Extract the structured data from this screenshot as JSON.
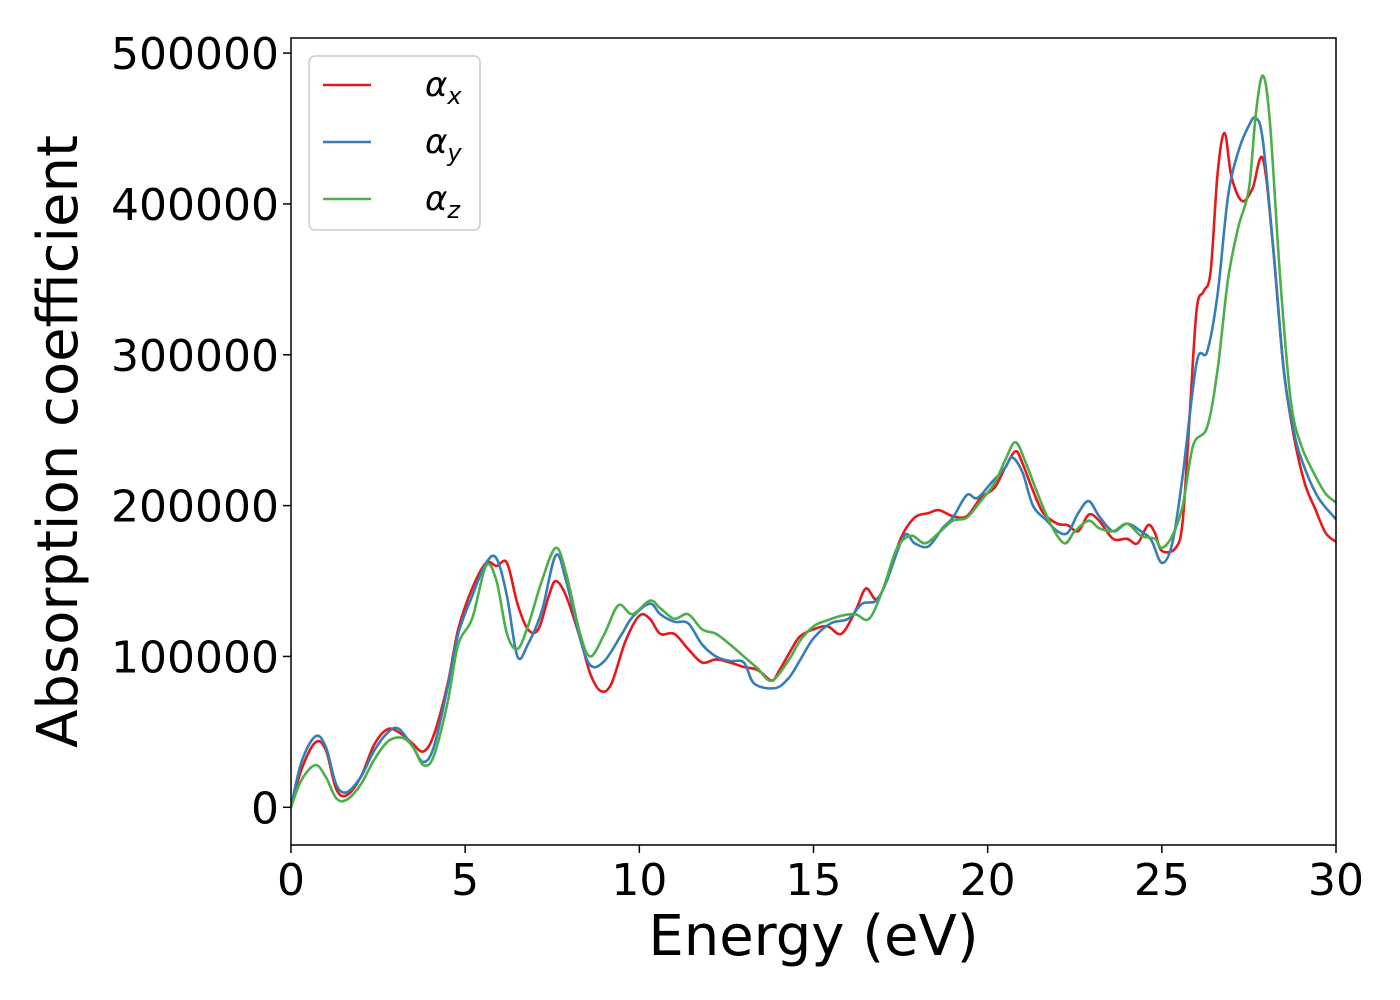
{
  "chart_data": {
    "type": "line",
    "title": "",
    "xlabel": "Energy (eV)",
    "ylabel": "Absorption coefficient",
    "xlim": [
      0,
      30
    ],
    "ylim": [
      -25000,
      510000
    ],
    "xticks": [
      0,
      5,
      10,
      15,
      20,
      25,
      30
    ],
    "yticks": [
      0,
      100000,
      200000,
      300000,
      400000,
      500000
    ],
    "grid": false,
    "legend_position": "top-left",
    "series": [
      {
        "name": "α",
        "subscript": "x",
        "color": "#e41a1c",
        "points": [
          [
            0,
            0
          ],
          [
            0.3,
            25000
          ],
          [
            0.7,
            43000
          ],
          [
            1.0,
            38000
          ],
          [
            1.3,
            12000
          ],
          [
            1.6,
            8000
          ],
          [
            2.0,
            20000
          ],
          [
            2.4,
            42000
          ],
          [
            2.8,
            52000
          ],
          [
            3.2,
            48000
          ],
          [
            3.5,
            42000
          ],
          [
            3.8,
            37000
          ],
          [
            4.1,
            48000
          ],
          [
            4.5,
            82000
          ],
          [
            4.8,
            118000
          ],
          [
            5.2,
            145000
          ],
          [
            5.6,
            162000
          ],
          [
            5.9,
            160000
          ],
          [
            6.2,
            162000
          ],
          [
            6.5,
            135000
          ],
          [
            6.8,
            118000
          ],
          [
            7.1,
            118000
          ],
          [
            7.4,
            140000
          ],
          [
            7.6,
            150000
          ],
          [
            7.9,
            140000
          ],
          [
            8.3,
            112000
          ],
          [
            8.6,
            88000
          ],
          [
            8.9,
            77000
          ],
          [
            9.2,
            82000
          ],
          [
            9.6,
            110000
          ],
          [
            10.0,
            127000
          ],
          [
            10.3,
            125000
          ],
          [
            10.6,
            115000
          ],
          [
            11.0,
            115000
          ],
          [
            11.4,
            105000
          ],
          [
            11.8,
            96000
          ],
          [
            12.2,
            98000
          ],
          [
            12.6,
            96000
          ],
          [
            13.0,
            93000
          ],
          [
            13.4,
            91000
          ],
          [
            13.8,
            84000
          ],
          [
            14.0,
            90000
          ],
          [
            14.3,
            102000
          ],
          [
            14.6,
            113000
          ],
          [
            15.0,
            118000
          ],
          [
            15.4,
            120000
          ],
          [
            15.8,
            115000
          ],
          [
            16.2,
            130000
          ],
          [
            16.5,
            145000
          ],
          [
            16.8,
            138000
          ],
          [
            17.1,
            150000
          ],
          [
            17.5,
            178000
          ],
          [
            17.9,
            192000
          ],
          [
            18.3,
            195000
          ],
          [
            18.6,
            197000
          ],
          [
            19.0,
            193000
          ],
          [
            19.4,
            193000
          ],
          [
            19.8,
            205000
          ],
          [
            20.2,
            212000
          ],
          [
            20.5,
            225000
          ],
          [
            20.8,
            236000
          ],
          [
            21.0,
            228000
          ],
          [
            21.3,
            210000
          ],
          [
            21.6,
            195000
          ],
          [
            22.0,
            188000
          ],
          [
            22.3,
            187000
          ],
          [
            22.6,
            183000
          ],
          [
            22.9,
            194000
          ],
          [
            23.2,
            190000
          ],
          [
            23.6,
            178000
          ],
          [
            24.0,
            178000
          ],
          [
            24.3,
            175000
          ],
          [
            24.6,
            187000
          ],
          [
            24.8,
            182000
          ],
          [
            25.0,
            170000
          ],
          [
            25.4,
            172000
          ],
          [
            25.6,
            190000
          ],
          [
            25.8,
            260000
          ],
          [
            26.0,
            330000
          ],
          [
            26.2,
            342000
          ],
          [
            26.4,
            355000
          ],
          [
            26.6,
            420000
          ],
          [
            26.8,
            447000
          ],
          [
            27.0,
            418000
          ],
          [
            27.3,
            402000
          ],
          [
            27.6,
            410000
          ],
          [
            27.9,
            430000
          ],
          [
            28.2,
            370000
          ],
          [
            28.5,
            290000
          ],
          [
            28.8,
            245000
          ],
          [
            29.1,
            215000
          ],
          [
            29.4,
            198000
          ],
          [
            29.7,
            182000
          ],
          [
            30.0,
            176000
          ]
        ]
      },
      {
        "name": "α",
        "subscript": "y",
        "color": "#377eb8",
        "points": [
          [
            0,
            0
          ],
          [
            0.3,
            30000
          ],
          [
            0.7,
            47000
          ],
          [
            1.0,
            40000
          ],
          [
            1.3,
            15000
          ],
          [
            1.6,
            10000
          ],
          [
            2.0,
            20000
          ],
          [
            2.4,
            38000
          ],
          [
            2.8,
            50000
          ],
          [
            3.1,
            52000
          ],
          [
            3.5,
            40000
          ],
          [
            3.8,
            30000
          ],
          [
            4.1,
            40000
          ],
          [
            4.5,
            80000
          ],
          [
            4.8,
            115000
          ],
          [
            5.2,
            140000
          ],
          [
            5.6,
            162000
          ],
          [
            5.9,
            165000
          ],
          [
            6.2,
            140000
          ],
          [
            6.5,
            100000
          ],
          [
            6.8,
            108000
          ],
          [
            7.2,
            130000
          ],
          [
            7.6,
            167000
          ],
          [
            7.9,
            150000
          ],
          [
            8.3,
            112000
          ],
          [
            8.6,
            94000
          ],
          [
            9.0,
            97000
          ],
          [
            9.5,
            115000
          ],
          [
            9.8,
            126000
          ],
          [
            10.3,
            135000
          ],
          [
            10.6,
            128000
          ],
          [
            11.0,
            123000
          ],
          [
            11.4,
            122000
          ],
          [
            11.8,
            108000
          ],
          [
            12.2,
            100000
          ],
          [
            12.6,
            97000
          ],
          [
            13.0,
            96000
          ],
          [
            13.3,
            82000
          ],
          [
            13.9,
            79000
          ],
          [
            14.3,
            86000
          ],
          [
            14.6,
            97000
          ],
          [
            15.0,
            112000
          ],
          [
            15.5,
            122000
          ],
          [
            16.0,
            125000
          ],
          [
            16.4,
            135000
          ],
          [
            16.8,
            137000
          ],
          [
            17.1,
            150000
          ],
          [
            17.6,
            180000
          ],
          [
            17.9,
            175000
          ],
          [
            18.3,
            173000
          ],
          [
            18.7,
            185000
          ],
          [
            19.0,
            192000
          ],
          [
            19.4,
            207000
          ],
          [
            19.7,
            205000
          ],
          [
            20.1,
            215000
          ],
          [
            20.5,
            225000
          ],
          [
            20.7,
            232000
          ],
          [
            21.0,
            222000
          ],
          [
            21.3,
            200000
          ],
          [
            21.7,
            190000
          ],
          [
            22.0,
            183000
          ],
          [
            22.3,
            182000
          ],
          [
            22.6,
            195000
          ],
          [
            22.9,
            203000
          ],
          [
            23.2,
            193000
          ],
          [
            23.6,
            183000
          ],
          [
            24.0,
            188000
          ],
          [
            24.4,
            183000
          ],
          [
            24.7,
            177000
          ],
          [
            25.0,
            162000
          ],
          [
            25.3,
            175000
          ],
          [
            25.6,
            220000
          ],
          [
            26.0,
            295000
          ],
          [
            26.3,
            302000
          ],
          [
            26.6,
            340000
          ],
          [
            26.9,
            405000
          ],
          [
            27.2,
            435000
          ],
          [
            27.5,
            452000
          ],
          [
            27.7,
            457000
          ],
          [
            27.9,
            442000
          ],
          [
            28.2,
            370000
          ],
          [
            28.5,
            290000
          ],
          [
            28.8,
            248000
          ],
          [
            29.1,
            225000
          ],
          [
            29.5,
            205000
          ],
          [
            30.0,
            191000
          ]
        ]
      },
      {
        "name": "α",
        "subscript": "z",
        "color": "#4daf4a",
        "points": [
          [
            0,
            0
          ],
          [
            0.3,
            18000
          ],
          [
            0.7,
            28000
          ],
          [
            1.0,
            20000
          ],
          [
            1.3,
            6000
          ],
          [
            1.6,
            5000
          ],
          [
            2.0,
            15000
          ],
          [
            2.4,
            32000
          ],
          [
            2.8,
            44000
          ],
          [
            3.2,
            46000
          ],
          [
            3.5,
            40000
          ],
          [
            3.8,
            28000
          ],
          [
            4.1,
            34000
          ],
          [
            4.5,
            70000
          ],
          [
            4.8,
            108000
          ],
          [
            5.2,
            125000
          ],
          [
            5.6,
            160000
          ],
          [
            5.9,
            150000
          ],
          [
            6.2,
            115000
          ],
          [
            6.5,
            105000
          ],
          [
            6.8,
            120000
          ],
          [
            7.2,
            150000
          ],
          [
            7.6,
            172000
          ],
          [
            7.9,
            155000
          ],
          [
            8.3,
            115000
          ],
          [
            8.6,
            100000
          ],
          [
            9.0,
            115000
          ],
          [
            9.4,
            134000
          ],
          [
            9.8,
            128000
          ],
          [
            10.3,
            137000
          ],
          [
            10.6,
            132000
          ],
          [
            11.0,
            125000
          ],
          [
            11.4,
            128000
          ],
          [
            11.8,
            118000
          ],
          [
            12.2,
            115000
          ],
          [
            12.6,
            108000
          ],
          [
            13.0,
            100000
          ],
          [
            13.4,
            92000
          ],
          [
            13.8,
            84000
          ],
          [
            14.3,
            98000
          ],
          [
            14.6,
            110000
          ],
          [
            15.0,
            120000
          ],
          [
            15.4,
            124000
          ],
          [
            15.8,
            127000
          ],
          [
            16.2,
            128000
          ],
          [
            16.6,
            125000
          ],
          [
            17.0,
            145000
          ],
          [
            17.4,
            172000
          ],
          [
            17.8,
            180000
          ],
          [
            18.2,
            175000
          ],
          [
            18.6,
            182000
          ],
          [
            19.0,
            190000
          ],
          [
            19.4,
            192000
          ],
          [
            19.8,
            203000
          ],
          [
            20.2,
            215000
          ],
          [
            20.5,
            230000
          ],
          [
            20.8,
            242000
          ],
          [
            21.1,
            228000
          ],
          [
            21.4,
            210000
          ],
          [
            21.8,
            188000
          ],
          [
            22.2,
            175000
          ],
          [
            22.5,
            183000
          ],
          [
            22.9,
            190000
          ],
          [
            23.2,
            185000
          ],
          [
            23.6,
            183000
          ],
          [
            24.0,
            188000
          ],
          [
            24.4,
            180000
          ],
          [
            24.8,
            178000
          ],
          [
            25.0,
            172000
          ],
          [
            25.3,
            180000
          ],
          [
            25.6,
            200000
          ],
          [
            25.9,
            240000
          ],
          [
            26.3,
            252000
          ],
          [
            26.6,
            290000
          ],
          [
            26.9,
            350000
          ],
          [
            27.2,
            385000
          ],
          [
            27.5,
            410000
          ],
          [
            27.7,
            460000
          ],
          [
            27.9,
            485000
          ],
          [
            28.1,
            455000
          ],
          [
            28.4,
            350000
          ],
          [
            28.7,
            270000
          ],
          [
            29.0,
            240000
          ],
          [
            29.4,
            220000
          ],
          [
            29.7,
            208000
          ],
          [
            30.0,
            202000
          ]
        ]
      }
    ]
  }
}
